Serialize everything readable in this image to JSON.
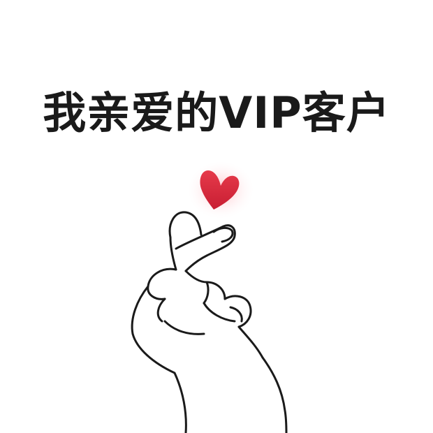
{
  "caption": "我亲爱的VIP客户",
  "colors": {
    "background": "#ffffff",
    "text": "#1a1a1a",
    "heart": "#e0303f",
    "heart_glow": "#ff8a96",
    "line": "#1a1a1a"
  },
  "icons": [
    "heart-icon",
    "finger-heart-hand-icon"
  ]
}
